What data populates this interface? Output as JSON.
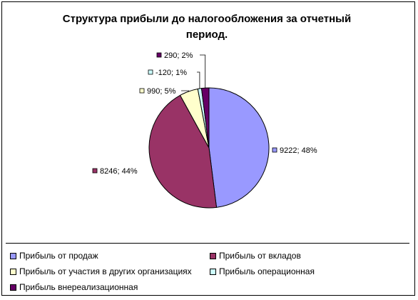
{
  "chart_data": {
    "type": "pie",
    "title": "Структура прибыли до налогообложения за отчетный период.",
    "title_line1": "Структура прибыли до налогообложения за отчетный",
    "title_line2": "период.",
    "slices": [
      {
        "name": "Прибыль от продаж",
        "value": 9222,
        "percent": 48,
        "label": "9222; 48%",
        "color": "#9999ff"
      },
      {
        "name": "Прибыль от вкладов",
        "value": 8246,
        "percent": 44,
        "label": "8246; 44%",
        "color": "#993366"
      },
      {
        "name": "Прибыль от участия в других организациях",
        "value": 990,
        "percent": 5,
        "label": "990; 5%",
        "color": "#ffffcc"
      },
      {
        "name": "Прибыль операционная",
        "value": -120,
        "percent": 1,
        "label": "-120; 1%",
        "color": "#ccffff"
      },
      {
        "name": "Прибыль внереализационная",
        "value": 290,
        "percent": 2,
        "label": "290; 2%",
        "color": "#660066"
      }
    ],
    "legend_position": "bottom"
  }
}
